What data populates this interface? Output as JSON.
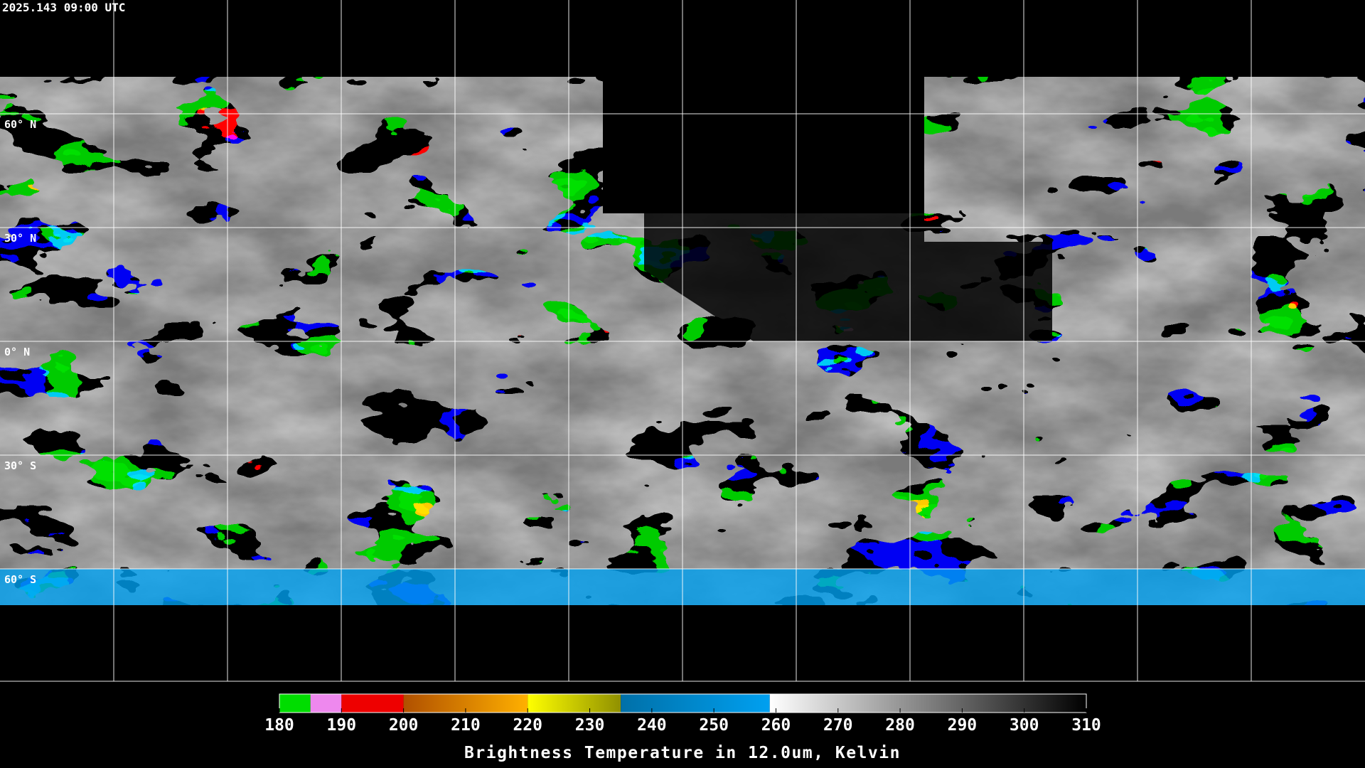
{
  "header": {
    "timestamp": "2025.143 09:00 UTC"
  },
  "map": {
    "lat_labels": [
      "60° N",
      "30° N",
      "0° N",
      "30° S",
      "60° S"
    ]
  },
  "colorbar": {
    "title": "Brightness Temperature in 12.0um, Kelvin",
    "range": [
      180,
      310
    ],
    "ticks": [
      180,
      190,
      200,
      210,
      220,
      230,
      240,
      250,
      260,
      270,
      280,
      290,
      300,
      310
    ],
    "segments": [
      {
        "from": 180,
        "to": 185,
        "colors": [
          "#00dd00",
          "#00dd00"
        ]
      },
      {
        "from": 185,
        "to": 190,
        "colors": [
          "#ee88ee",
          "#ee88ee"
        ]
      },
      {
        "from": 190,
        "to": 200,
        "colors": [
          "#ee0000",
          "#ee0000"
        ]
      },
      {
        "from": 200,
        "to": 220,
        "colors": [
          "#b05000",
          "#ffb000"
        ]
      },
      {
        "from": 220,
        "to": 235,
        "colors": [
          "#ffff00",
          "#909000"
        ]
      },
      {
        "from": 235,
        "to": 259,
        "colors": [
          "#0070a8",
          "#00a0f0"
        ]
      },
      {
        "from": 259,
        "to": 310,
        "colors": [
          "#ffffff",
          "#000000"
        ]
      }
    ]
  }
}
